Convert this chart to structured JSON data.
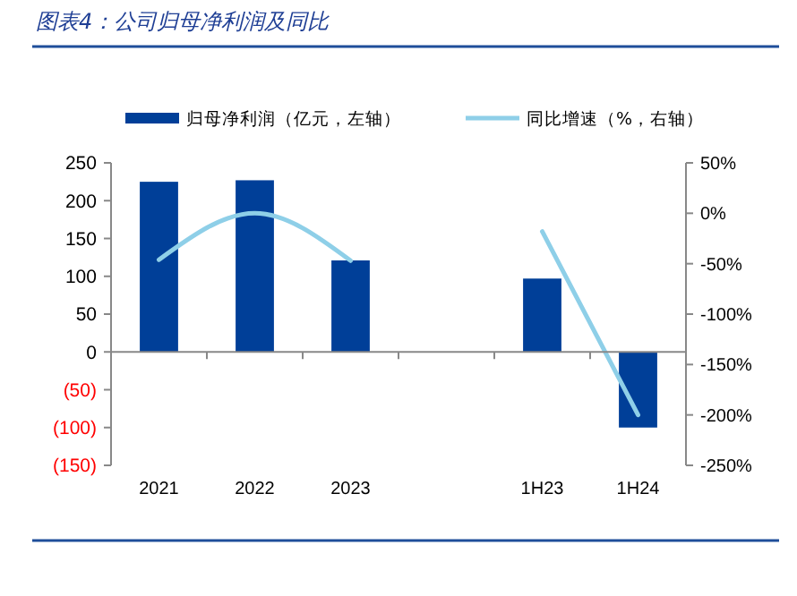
{
  "chart_data": {
    "type": "bar",
    "title": "图表4：公司归母净利润及同比",
    "categories": [
      "2021",
      "2022",
      "2023",
      null,
      "1H23",
      "1H24"
    ],
    "series": [
      {
        "name": "归母净利润（亿元，左轴）",
        "color": "#003f98",
        "values": [
          225,
          227,
          121,
          null,
          97,
          -100
        ]
      },
      {
        "name": "同比增速（%，右轴）",
        "type": "line",
        "axis": "y2",
        "color": "#8ecfe8",
        "values": [
          -46,
          0,
          -47,
          null,
          -18,
          -200
        ]
      }
    ],
    "ylim": [
      -150,
      250
    ],
    "yticks": [
      {
        "value": -150,
        "label": "(150)"
      },
      {
        "value": -100,
        "label": "(100)"
      },
      {
        "value": -50,
        "label": "(50)"
      },
      0,
      50,
      100,
      150,
      200,
      250
    ],
    "y2lim": [
      -250,
      50
    ],
    "y2ticks": [
      {
        "value": -250,
        "label": "-250%"
      },
      {
        "value": -200,
        "label": "-200%"
      },
      {
        "value": -150,
        "label": "-150%"
      },
      {
        "value": -100,
        "label": "-100%"
      },
      {
        "value": -50,
        "label": "-50%"
      },
      {
        "value": 0,
        "label": "0%"
      },
      {
        "value": 50,
        "label": "50%"
      }
    ],
    "legend": "top"
  }
}
